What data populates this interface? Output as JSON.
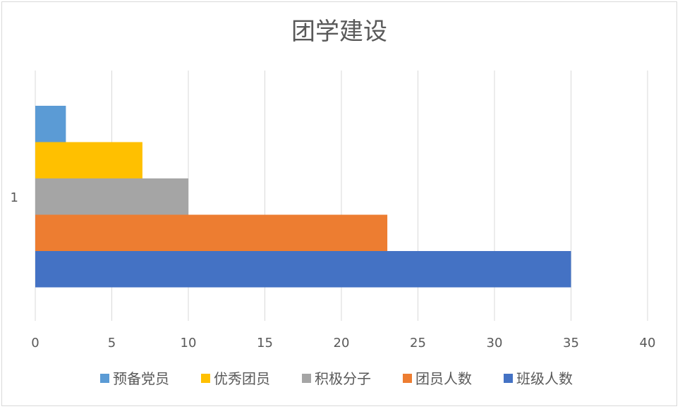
{
  "chart_data": {
    "type": "bar",
    "orientation": "horizontal",
    "title": "团学建设",
    "categories": [
      "1"
    ],
    "series": [
      {
        "name": "预备党员",
        "values": [
          2
        ],
        "color": "#5B9BD5"
      },
      {
        "name": "优秀团员",
        "values": [
          7
        ],
        "color": "#FFC000"
      },
      {
        "name": "积极分子",
        "values": [
          10
        ],
        "color": "#A5A5A5"
      },
      {
        "name": "团员人数",
        "values": [
          23
        ],
        "color": "#ED7D31"
      },
      {
        "name": "班级人数",
        "values": [
          35
        ],
        "color": "#4472C4"
      }
    ],
    "xlim": [
      0,
      40
    ],
    "xticks": [
      "0",
      "5",
      "10",
      "15",
      "20",
      "25",
      "30",
      "35",
      "40"
    ],
    "grid": true,
    "legend_position": "bottom",
    "gridline_color": "#d9d9d9"
  }
}
